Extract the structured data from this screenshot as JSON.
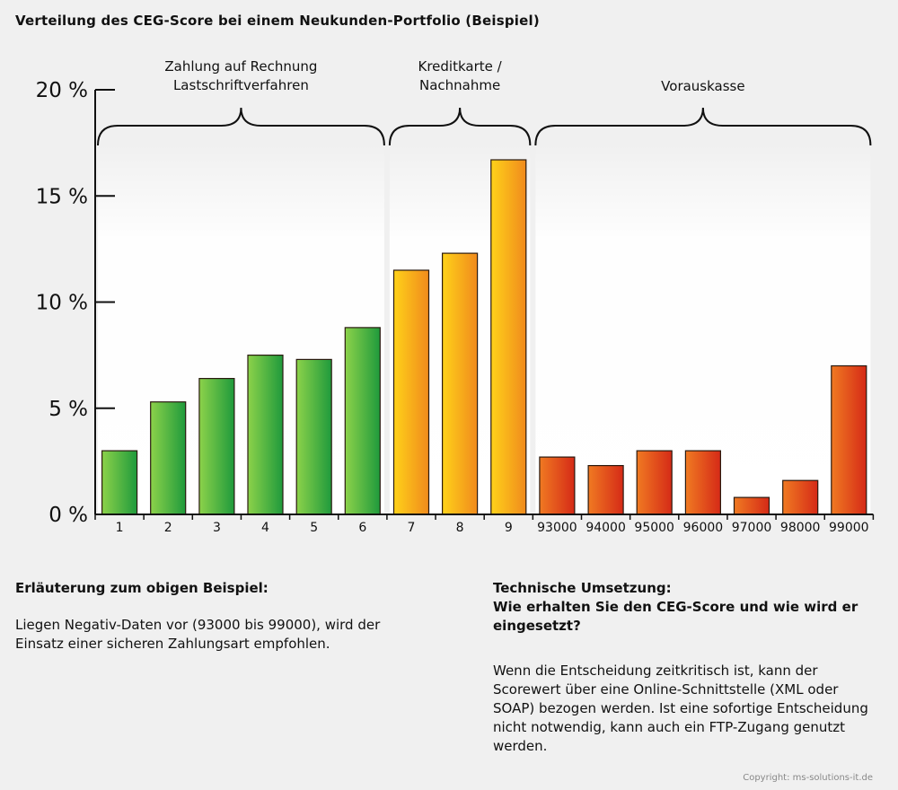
{
  "title": "Verteilung des CEG-Score bei einem Neukunden-Portfolio (Beispiel)",
  "chart_data": {
    "type": "bar",
    "categories": [
      "1",
      "2",
      "3",
      "4",
      "5",
      "6",
      "7",
      "8",
      "9",
      "93000",
      "94000",
      "95000",
      "96000",
      "97000",
      "98000",
      "99000"
    ],
    "values": [
      3.0,
      5.3,
      6.4,
      7.5,
      7.3,
      8.8,
      11.5,
      12.3,
      16.7,
      2.7,
      2.3,
      3.0,
      3.0,
      0.8,
      1.6,
      7.0
    ],
    "bar_colors": [
      "green",
      "green",
      "green",
      "green",
      "green",
      "green",
      "yellow",
      "yellow",
      "yellow",
      "red",
      "red",
      "red",
      "red",
      "red",
      "red",
      "red"
    ],
    "ylim": [
      0,
      20
    ],
    "yticks": [
      0,
      5,
      10,
      15,
      20
    ],
    "ytick_labels": [
      "0 %",
      "5 %",
      "10 %",
      "15 %",
      "20 %"
    ],
    "groups": [
      {
        "label_lines": [
          "Zahlung auf Rechnung",
          "Lastschriftverfahren"
        ],
        "from": 0,
        "to": 5
      },
      {
        "label_lines": [
          "Kreditkarte /",
          "Nachnahme"
        ],
        "from": 6,
        "to": 8
      },
      {
        "label_lines": [
          "Vorauskasse"
        ],
        "from": 9,
        "to": 15
      }
    ]
  },
  "colors": {
    "green_light": "#8cd24a",
    "green_dark": "#1f9a3c",
    "yellow_light": "#ffd21a",
    "yellow_dark": "#f08a1c",
    "red_light": "#f07a22",
    "red_dark": "#d52a17"
  },
  "left": {
    "heading": "Erläuterung zum obigen Beispiel:",
    "text": "Liegen Negativ-Daten vor (93000 bis 99000), wird der Einsatz einer sicheren Zahlungsart empfohlen."
  },
  "right": {
    "heading_line1": "Technische Umsetzung:",
    "heading_line2": "Wie erhalten Sie den CEG-Score und wie wird er eingesetzt?",
    "text": "Wenn die Entscheidung zeitkritisch ist, kann der Scorewert über eine Online-Schnittstelle (XML oder SOAP) bezogen werden. Ist eine sofortige Entscheidung nicht notwendig, kann auch ein FTP-Zugang genutzt werden."
  },
  "copyright": "Copyright: ms-solutions-it.de"
}
